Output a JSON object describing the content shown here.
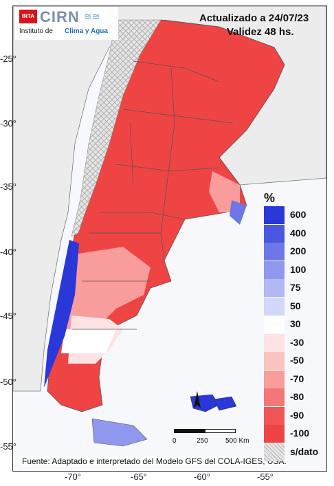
{
  "header": {
    "logo_badge": "INTA",
    "logo_name": "CIRN",
    "logo_sub_prefix": "Instituto de",
    "logo_sub_highlight": "Clima y Agua",
    "title_line1": "Actualizado a 24/07/23",
    "title_line2": "Validez 48 hs."
  },
  "axes": {
    "y_ticks": [
      "-25°",
      "-30°",
      "-35°",
      "-40°",
      "-45°",
      "-50°",
      "-55°"
    ],
    "x_ticks": [
      "-70°",
      "-65°",
      "-60°",
      "-55°"
    ]
  },
  "legend": {
    "unit": "%",
    "items": [
      {
        "label": "600",
        "color": "#2a37d9"
      },
      {
        "label": "400",
        "color": "#4a57e0"
      },
      {
        "label": "200",
        "color": "#6d78e6"
      },
      {
        "label": "100",
        "color": "#8f98ec"
      },
      {
        "label": "75",
        "color": "#b2b8f2"
      },
      {
        "label": "50",
        "color": "#d3d7f8"
      },
      {
        "label": "30",
        "color": "#ffffff"
      },
      {
        "label": "-30",
        "color": "#fde3e3"
      },
      {
        "label": "-50",
        "color": "#fbc2c2"
      },
      {
        "label": "-70",
        "color": "#f89c9c"
      },
      {
        "label": "-80",
        "color": "#f57676"
      },
      {
        "label": "-90",
        "color": "#f25555"
      },
      {
        "label": "-100",
        "color": "#ef4444"
      },
      {
        "label": "s/dato",
        "color": "#d9d9d9"
      }
    ]
  },
  "scale_bar": {
    "labels": [
      "0",
      "250",
      "500 Km"
    ]
  },
  "footer": {
    "source": "Fuente: Adaptado e interpretado del Modelo GFS del COLA-IGES, USA."
  }
}
